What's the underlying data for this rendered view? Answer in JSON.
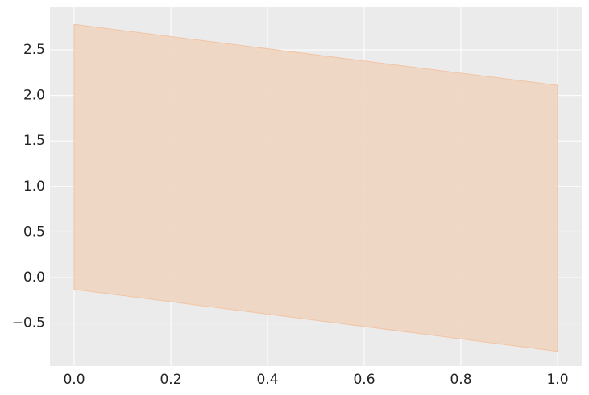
{
  "chart_data": {
    "type": "band",
    "x": [
      0,
      1
    ],
    "upper": [
      2.78,
      2.11
    ],
    "lower": [
      -0.13,
      -0.81
    ],
    "color": "#f0d5c2",
    "edge_color": "#f2c4a3",
    "background": "#ebebeb",
    "grid": true,
    "xlim": [
      -0.05,
      1.05
    ],
    "ylim": [
      -0.972,
      2.968
    ],
    "xticks": [
      {
        "value": 0,
        "label": "0.0"
      },
      0.2,
      0.4,
      0.6,
      0.8,
      {
        "value": 1,
        "label": "1.0"
      }
    ],
    "yticks": [
      {
        "value": -0.5,
        "label": "−0.5"
      },
      {
        "value": 0,
        "label": "0.0"
      },
      0.5,
      {
        "value": 1,
        "label": "1.0"
      },
      1.5,
      {
        "value": 2,
        "label": "2.0"
      },
      2.5
    ]
  }
}
